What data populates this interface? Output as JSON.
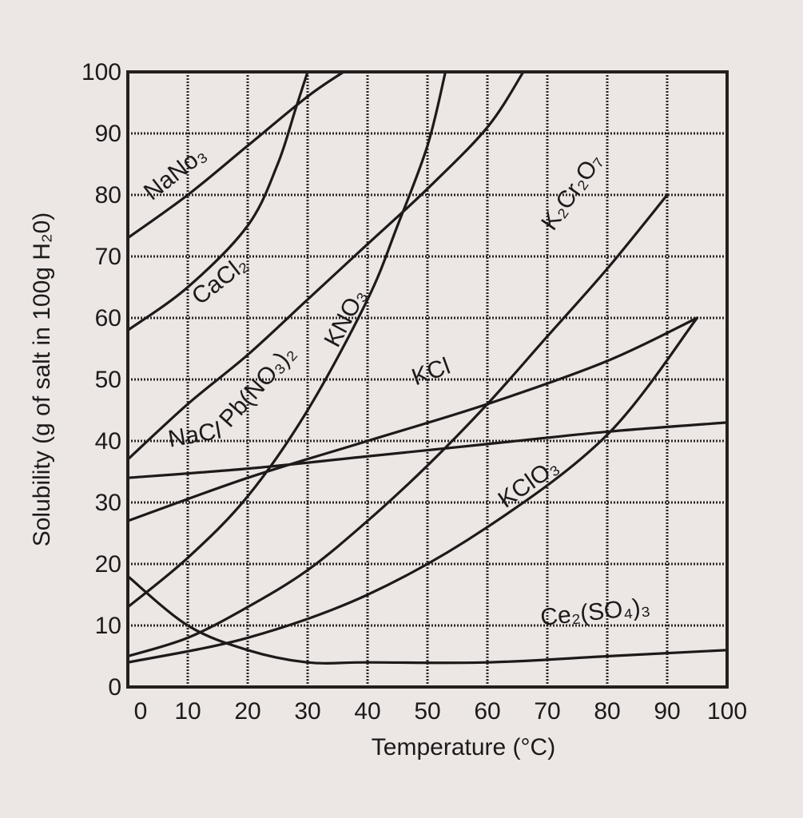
{
  "chart_data": {
    "type": "line",
    "title": "",
    "xlabel": "Temperature (°C)",
    "ylabel": "Solubility (g of salt in 100g H₂0)",
    "xlim": [
      0,
      100
    ],
    "ylim": [
      0,
      100
    ],
    "grid": true,
    "legend": "none (labels placed along curves)",
    "x_ticks": [
      "0",
      "10",
      "20",
      "30",
      "40",
      "50",
      "60",
      "70",
      "80",
      "90",
      "100"
    ],
    "y_ticks": [
      "0",
      "10",
      "20",
      "30",
      "40",
      "50",
      "60",
      "70",
      "80",
      "90",
      "100"
    ],
    "series": [
      {
        "name": "NaNo₃",
        "x": [
          0,
          10,
          20,
          30,
          36
        ],
        "y": [
          73,
          80,
          88,
          96,
          100
        ]
      },
      {
        "name": "CaCl₂",
        "x": [
          0,
          10,
          20,
          25,
          28,
          30
        ],
        "y": [
          58,
          65,
          75,
          85,
          94,
          100
        ]
      },
      {
        "name": "Pb(NO₃)₂",
        "x": [
          0,
          10,
          20,
          30,
          40,
          50,
          60,
          66
        ],
        "y": [
          37,
          46,
          54,
          63,
          72,
          81,
          91,
          100
        ]
      },
      {
        "name": "KNO₃",
        "x": [
          0,
          10,
          20,
          30,
          40,
          45,
          50,
          53
        ],
        "y": [
          13,
          21,
          31,
          45,
          63,
          75,
          88,
          100
        ]
      },
      {
        "name": "KCl",
        "x": [
          0,
          20,
          40,
          60,
          80,
          95
        ],
        "y": [
          27,
          34,
          40,
          46,
          53,
          60
        ]
      },
      {
        "name": "NaCl",
        "x": [
          0,
          20,
          40,
          60,
          80,
          100
        ],
        "y": [
          34,
          35.5,
          37.5,
          39.5,
          41.5,
          43
        ]
      },
      {
        "name": "K₂Cr₂O₇",
        "x": [
          0,
          10,
          20,
          30,
          40,
          50,
          60,
          70,
          80,
          90
        ],
        "y": [
          5,
          8,
          13,
          19,
          27,
          36,
          46,
          57,
          68,
          80
        ]
      },
      {
        "name": "KClO₃",
        "x": [
          0,
          20,
          40,
          60,
          80,
          95
        ],
        "y": [
          4,
          8,
          15,
          26,
          41,
          60
        ]
      },
      {
        "name": "Ce₂(SO₄)₃",
        "x": [
          0,
          10,
          20,
          30,
          40,
          60,
          80,
          100
        ],
        "y": [
          18,
          10,
          6,
          4,
          4,
          4,
          5,
          6
        ]
      }
    ]
  },
  "colors": {
    "paper": "#ece6e4",
    "ink": "#1e1a1a"
  }
}
